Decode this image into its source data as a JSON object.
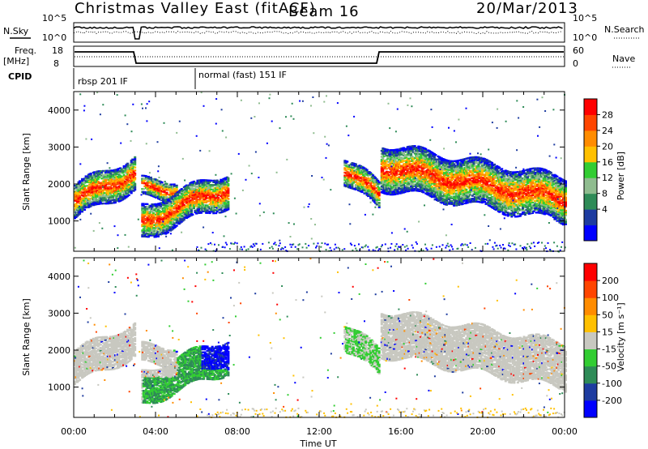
{
  "header": {
    "title": "Christmas Valley East (fitACF)",
    "beam": "Beam 16",
    "date": "20/Mar/2013"
  },
  "panels": {
    "nsky_label": "N.Sky",
    "nsearch_label": "N.Search",
    "nsky_ticks": [
      "10^5",
      "10^0"
    ],
    "freq_label_1": "Freq.",
    "freq_label_2": "[MHz]",
    "freq_ticks": [
      "18",
      "8"
    ],
    "nave_label": "Nave",
    "nave_ticks": [
      "60",
      "0"
    ],
    "cpid_label": "CPID",
    "cpid_segments": [
      {
        "name": "rbsp 201 IF",
        "start_hour": 0,
        "end_hour": 6
      },
      {
        "name": "normal (fast) 151 IF",
        "start_hour": 6,
        "end_hour": 24
      }
    ]
  },
  "colorbars": {
    "power": {
      "label": "Power [dB]",
      "ticks": [
        "28",
        "24",
        "20",
        "16",
        "12",
        "8",
        "4"
      ],
      "colors": [
        "#0000ff",
        "#1e3ca0",
        "#2e8b57",
        "#8fbc8f",
        "#32cd32",
        "#ffc000",
        "#ff8c00",
        "#ff4500",
        "#ff0000"
      ]
    },
    "velocity": {
      "label": "Velocity [m s⁻¹]",
      "ticks": [
        "200",
        "100",
        "50",
        "15",
        "-15",
        "-50",
        "-100",
        "-200"
      ],
      "colors": [
        "#0000ff",
        "#1e3ca0",
        "#2e8b57",
        "#32cd32",
        "#c8c8c0",
        "#ffc000",
        "#ff8c00",
        "#ff4500",
        "#ff0000"
      ]
    }
  },
  "chart_data": [
    {
      "type": "heatmap",
      "name": "power",
      "ylabel": "Slant Range [km]",
      "xlabel": "Time UT",
      "x_ticks": [
        "00:00",
        "04:00",
        "08:00",
        "12:00",
        "16:00",
        "20:00",
        "00:00"
      ],
      "y_ticks": [
        1000,
        2000,
        3000,
        4000
      ],
      "xlim": [
        0,
        24
      ],
      "ylim": [
        180,
        4500
      ],
      "scatter_regions": [
        {
          "t0": 0.0,
          "t1": 3.0,
          "r_center_start": 1550,
          "r_center_end": 2350,
          "r_width": 900
        },
        {
          "t0": 3.3,
          "t1": 5.0,
          "r_center_start": 1900,
          "r_center_end": 1900,
          "r_width": 500
        },
        {
          "t0": 3.3,
          "t1": 7.5,
          "r_center_start": 1000,
          "r_center_end": 1900,
          "r_width": 900
        },
        {
          "t0": 13.2,
          "t1": 14.9,
          "r_center_start": 2400,
          "r_center_end": 1700,
          "r_width": 700
        },
        {
          "t0": 15.0,
          "t1": 24.0,
          "r_center_start": 2500,
          "r_center_end": 1600,
          "r_width": 1200
        }
      ]
    },
    {
      "type": "heatmap",
      "name": "velocity",
      "ylabel": "Slant Range [km]",
      "xlabel": "Time UT",
      "x_ticks": [
        "00:00",
        "04:00",
        "08:00",
        "12:00",
        "16:00",
        "20:00",
        "00:00"
      ],
      "y_ticks": [
        1000,
        2000,
        3000,
        4000
      ],
      "xlim": [
        0,
        24
      ],
      "ylim": [
        180,
        4500
      ]
    }
  ]
}
